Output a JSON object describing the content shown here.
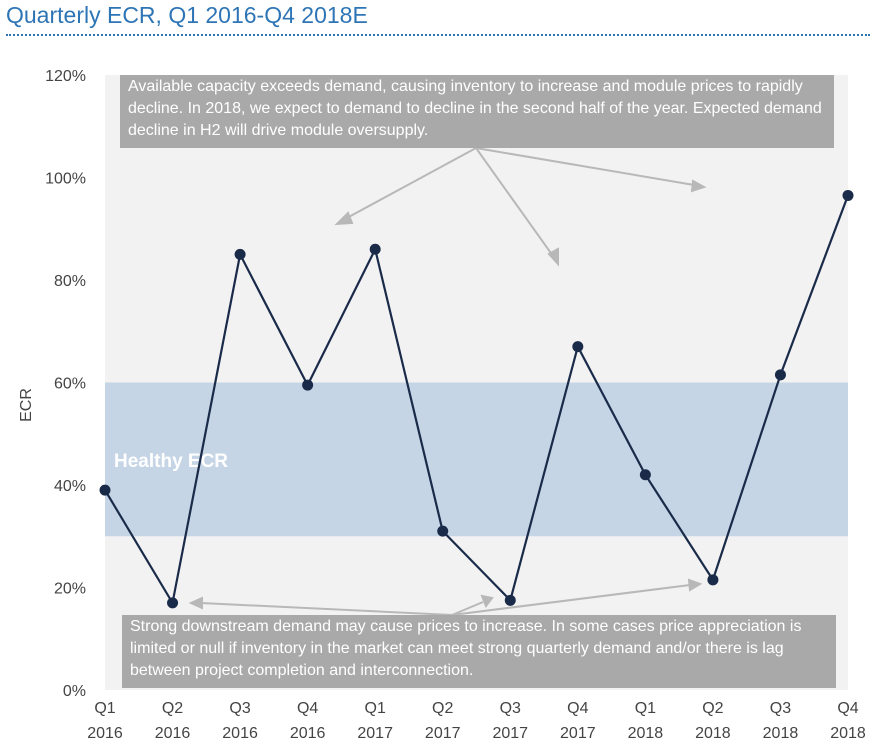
{
  "page_title": "Quarterly ECR, Q1 2016-Q4 2018E",
  "colors": {
    "title": "#2e75b6",
    "line": "#1a2b4a",
    "band": "#c5d5e6",
    "plot_bg": "#f2f2f2",
    "note_bg": "#a9a9a9"
  },
  "chart_data": {
    "type": "line",
    "title": "",
    "ylabel": "ECR",
    "xlabel": "",
    "ylim": [
      0,
      120
    ],
    "y_ticks": [
      "0%",
      "20%",
      "40%",
      "60%",
      "80%",
      "100%",
      "120%"
    ],
    "y_tick_values": [
      0,
      20,
      40,
      60,
      80,
      100,
      120
    ],
    "categories": [
      [
        "Q1",
        "2016"
      ],
      [
        "Q2",
        "2016"
      ],
      [
        "Q3",
        "2016"
      ],
      [
        "Q4",
        "2016"
      ],
      [
        "Q1",
        "2017"
      ],
      [
        "Q2",
        "2017"
      ],
      [
        "Q3",
        "2017"
      ],
      [
        "Q4",
        "2017"
      ],
      [
        "Q1",
        "2018"
      ],
      [
        "Q2",
        "2018"
      ],
      [
        "Q3",
        "2018"
      ],
      [
        "Q4",
        "2018"
      ]
    ],
    "series": [
      {
        "values": [
          39,
          17,
          85,
          59.5,
          86,
          31,
          17.5,
          67,
          42,
          21.5,
          61.5,
          96.5
        ]
      }
    ],
    "band": {
      "from": 30,
      "to": 60,
      "label": "Healthy ECR"
    },
    "annotations": {
      "top": "Available capacity exceeds demand, causing inventory to increase and module prices to rapidly decline. In 2018, we expect to demand to decline in the second half of the year. Expected demand decline in H2 will drive module oversupply.",
      "bottom": "Strong downstream demand may cause prices to increase. In some cases price appreciation is limited or null if inventory in the market can meet strong quarterly demand and/or there is lag between project completion and interconnection."
    },
    "grid": false,
    "legend": "none"
  }
}
